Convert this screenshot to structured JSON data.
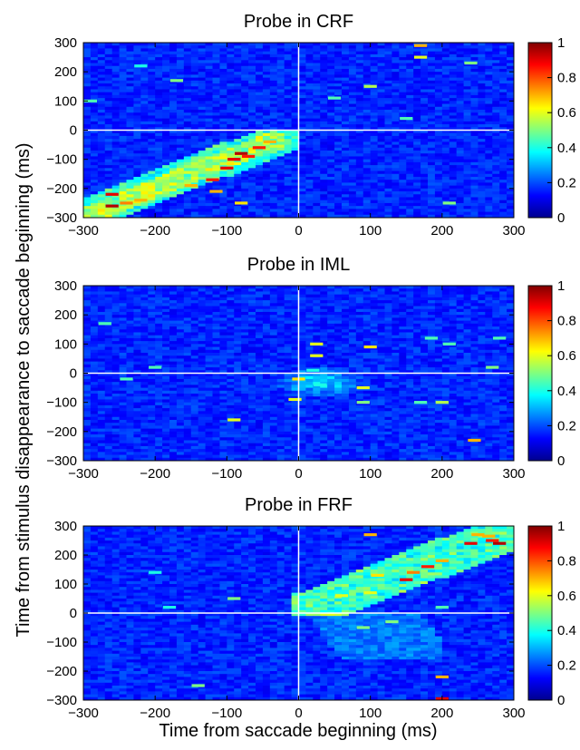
{
  "figure": {
    "ylabel": "Time from stimulus disappearance to saccade beginning (ms)",
    "xlabel": "Time from saccade beginning (ms)",
    "colormap": "jet",
    "background_color": "#1e4fb4"
  },
  "chart_data": [
    {
      "type": "heatmap",
      "title": "Probe in CRF",
      "x_range": [
        -300,
        300
      ],
      "y_range": [
        -300,
        300
      ],
      "x_ticks": [
        -300,
        -200,
        -100,
        0,
        100,
        200,
        300
      ],
      "y_ticks": [
        300,
        200,
        100,
        0,
        -100,
        -200,
        -300
      ],
      "color_range": [
        0,
        1
      ],
      "colorbar_ticks": [
        "1",
        "0.8",
        "0.6",
        "0.4",
        "0.2",
        "0"
      ],
      "reference_lines": {
        "x": 0,
        "y": 0,
        "color": "#ffffff"
      },
      "pattern": "diagonal band of elevated values from (x=-300,y=-280) to (x=-20,y=-20), peak ~0.95 near x=-100..-50, y=-100..-50",
      "hotspots": [
        {
          "x": -260,
          "y": -220,
          "v": 0.9
        },
        {
          "x": -260,
          "y": -260,
          "v": 0.95
        },
        {
          "x": -240,
          "y": -250,
          "v": 0.75
        },
        {
          "x": -220,
          "y": -240,
          "v": 0.7
        },
        {
          "x": -150,
          "y": -190,
          "v": 0.7
        },
        {
          "x": -120,
          "y": -170,
          "v": 0.85
        },
        {
          "x": -100,
          "y": -130,
          "v": 0.9
        },
        {
          "x": -90,
          "y": -100,
          "v": 0.9
        },
        {
          "x": -80,
          "y": -80,
          "v": 0.95
        },
        {
          "x": -70,
          "y": -90,
          "v": 0.85
        },
        {
          "x": -55,
          "y": -60,
          "v": 0.85
        },
        {
          "x": -40,
          "y": -40,
          "v": 0.7
        },
        {
          "x": -115,
          "y": -210,
          "v": 0.7
        },
        {
          "x": -80,
          "y": -250,
          "v": 0.65
        },
        {
          "x": 170,
          "y": 290,
          "v": 0.7
        },
        {
          "x": 170,
          "y": 250,
          "v": 0.6
        },
        {
          "x": 100,
          "y": 150,
          "v": 0.55
        },
        {
          "x": 50,
          "y": 110,
          "v": 0.45
        },
        {
          "x": -220,
          "y": 220,
          "v": 0.4
        },
        {
          "x": -170,
          "y": 170,
          "v": 0.5
        },
        {
          "x": 240,
          "y": 230,
          "v": 0.5
        },
        {
          "x": 150,
          "y": 40,
          "v": 0.45
        },
        {
          "x": 210,
          "y": -250,
          "v": 0.5
        },
        {
          "x": -290,
          "y": 100,
          "v": 0.45
        }
      ]
    },
    {
      "type": "heatmap",
      "title": "Probe in IML",
      "x_range": [
        -300,
        300
      ],
      "y_range": [
        -300,
        300
      ],
      "x_ticks": [
        -300,
        -200,
        -100,
        0,
        100,
        200,
        300
      ],
      "y_ticks": [
        300,
        200,
        100,
        0,
        -100,
        -200,
        -300
      ],
      "color_range": [
        0,
        1
      ],
      "colorbar_ticks": [
        "1",
        "0.8",
        "0.6",
        "0.4",
        "0.2",
        "0"
      ],
      "reference_lines": {
        "x": 0,
        "y": 0,
        "color": "#ffffff"
      },
      "pattern": "weak cluster of elevated values around (x=0..60, y=-80..20), mostly ~0.2",
      "hotspots": [
        {
          "x": -270,
          "y": 170,
          "v": 0.45
        },
        {
          "x": -240,
          "y": -20,
          "v": 0.45
        },
        {
          "x": -200,
          "y": 20,
          "v": 0.45
        },
        {
          "x": -90,
          "y": -160,
          "v": 0.6
        },
        {
          "x": 0,
          "y": -20,
          "v": 0.65
        },
        {
          "x": -5,
          "y": -90,
          "v": 0.6
        },
        {
          "x": 20,
          "y": 10,
          "v": 0.4
        },
        {
          "x": 30,
          "y": -40,
          "v": 0.4
        },
        {
          "x": 25,
          "y": 100,
          "v": 0.6
        },
        {
          "x": 25,
          "y": 60,
          "v": 0.6
        },
        {
          "x": 100,
          "y": 90,
          "v": 0.65
        },
        {
          "x": 90,
          "y": -50,
          "v": 0.6
        },
        {
          "x": 90,
          "y": -100,
          "v": 0.5
        },
        {
          "x": 170,
          "y": -100,
          "v": 0.45
        },
        {
          "x": 200,
          "y": -100,
          "v": 0.55
        },
        {
          "x": 185,
          "y": 120,
          "v": 0.45
        },
        {
          "x": 210,
          "y": 100,
          "v": 0.45
        },
        {
          "x": 280,
          "y": 120,
          "v": 0.45
        },
        {
          "x": 245,
          "y": -230,
          "v": 0.7
        },
        {
          "x": 270,
          "y": 20,
          "v": 0.5
        }
      ]
    },
    {
      "type": "heatmap",
      "title": "Probe in FRF",
      "x_range": [
        -300,
        300
      ],
      "y_range": [
        -300,
        300
      ],
      "x_ticks": [
        -300,
        -200,
        -100,
        0,
        100,
        200,
        300
      ],
      "y_ticks": [
        300,
        200,
        100,
        0,
        -100,
        -200,
        -300
      ],
      "color_range": [
        0,
        1
      ],
      "colorbar_ticks": [
        "1",
        "0.8",
        "0.6",
        "0.4",
        "0.2",
        "0"
      ],
      "reference_lines": {
        "x": 0,
        "y": 0,
        "color": "#ffffff"
      },
      "pattern": "diagonal band of elevated values from (x=0,y=0) to (x=290,y=290), peak ~0.95 near x=150..280, y=100..250",
      "hotspots": [
        {
          "x": 270,
          "y": 250,
          "v": 0.85
        },
        {
          "x": 280,
          "y": 240,
          "v": 0.95
        },
        {
          "x": 250,
          "y": 270,
          "v": 0.7
        },
        {
          "x": 265,
          "y": 265,
          "v": 0.7
        },
        {
          "x": 240,
          "y": 240,
          "v": 0.9
        },
        {
          "x": 180,
          "y": 160,
          "v": 0.85
        },
        {
          "x": 150,
          "y": 115,
          "v": 0.9
        },
        {
          "x": 160,
          "y": 140,
          "v": 0.75
        },
        {
          "x": 200,
          "y": 180,
          "v": 0.7
        },
        {
          "x": 110,
          "y": 130,
          "v": 0.65
        },
        {
          "x": 100,
          "y": 270,
          "v": 0.7
        },
        {
          "x": 100,
          "y": 70,
          "v": 0.6
        },
        {
          "x": 60,
          "y": 60,
          "v": 0.6
        },
        {
          "x": 200,
          "y": -220,
          "v": 0.7
        },
        {
          "x": 200,
          "y": -295,
          "v": 0.9
        },
        {
          "x": 130,
          "y": -30,
          "v": 0.5
        },
        {
          "x": 200,
          "y": 20,
          "v": 0.45
        },
        {
          "x": -90,
          "y": 50,
          "v": 0.5
        },
        {
          "x": -140,
          "y": -250,
          "v": 0.5
        },
        {
          "x": 90,
          "y": -50,
          "v": 0.5
        },
        {
          "x": -200,
          "y": 140,
          "v": 0.4
        },
        {
          "x": -180,
          "y": 20,
          "v": 0.4
        }
      ]
    }
  ]
}
